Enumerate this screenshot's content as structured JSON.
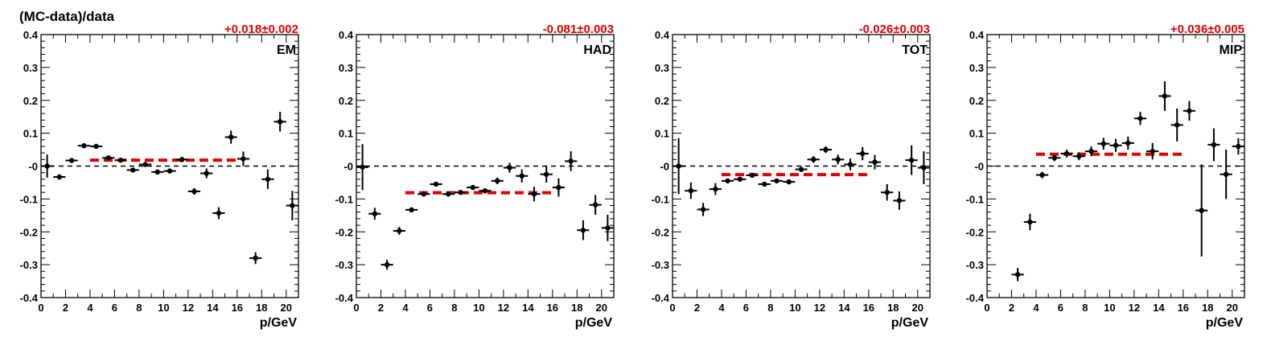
{
  "figure": {
    "ylabel": "(MC-data)/data"
  },
  "chart_data": [
    {
      "type": "scatter",
      "panel_label": "EM",
      "fit_label": "+0.018±0.002",
      "fit": {
        "value": 0.018,
        "x_range": [
          4,
          16
        ],
        "color": "#e00000"
      },
      "xlabel": "p/GeV",
      "xlim": [
        0,
        21
      ],
      "ylim": [
        -0.4,
        0.4
      ],
      "x_ticks": [
        0,
        2,
        4,
        6,
        8,
        10,
        12,
        14,
        16,
        18,
        20
      ],
      "y_ticks": [
        -0.4,
        -0.3,
        -0.2,
        -0.1,
        0,
        0.1,
        0.2,
        0.3,
        0.4
      ],
      "points": [
        {
          "x": 0.5,
          "y": 0.0,
          "err": 0.035
        },
        {
          "x": 1.5,
          "y": -0.033,
          "err": 0.008
        },
        {
          "x": 2.5,
          "y": 0.017,
          "err": 0.007
        },
        {
          "x": 3.5,
          "y": 0.062,
          "err": 0.006
        },
        {
          "x": 4.5,
          "y": 0.06,
          "err": 0.005
        },
        {
          "x": 5.5,
          "y": 0.025,
          "err": 0.005
        },
        {
          "x": 6.5,
          "y": 0.018,
          "err": 0.005
        },
        {
          "x": 7.5,
          "y": -0.012,
          "err": 0.006
        },
        {
          "x": 8.5,
          "y": 0.005,
          "err": 0.006
        },
        {
          "x": 9.5,
          "y": -0.018,
          "err": 0.006
        },
        {
          "x": 10.5,
          "y": -0.015,
          "err": 0.007
        },
        {
          "x": 11.5,
          "y": 0.02,
          "err": 0.008
        },
        {
          "x": 12.5,
          "y": -0.077,
          "err": 0.01
        },
        {
          "x": 13.5,
          "y": -0.022,
          "err": 0.015
        },
        {
          "x": 14.5,
          "y": -0.143,
          "err": 0.018
        },
        {
          "x": 15.5,
          "y": 0.088,
          "err": 0.02
        },
        {
          "x": 16.5,
          "y": 0.022,
          "err": 0.022
        },
        {
          "x": 17.5,
          "y": -0.28,
          "err": 0.018
        },
        {
          "x": 18.5,
          "y": -0.04,
          "err": 0.03
        },
        {
          "x": 19.5,
          "y": 0.135,
          "err": 0.03
        },
        {
          "x": 20.5,
          "y": -0.12,
          "err": 0.045
        }
      ]
    },
    {
      "type": "scatter",
      "panel_label": "HAD",
      "fit_label": "-0.081±0.003",
      "fit": {
        "value": -0.081,
        "x_range": [
          4,
          16
        ],
        "color": "#e00000"
      },
      "xlabel": "p/GeV",
      "xlim": [
        0,
        21
      ],
      "ylim": [
        -0.4,
        0.4
      ],
      "x_ticks": [
        0,
        2,
        4,
        6,
        8,
        10,
        12,
        14,
        16,
        18,
        20
      ],
      "y_ticks": [
        -0.4,
        -0.3,
        -0.2,
        -0.1,
        0,
        0.1,
        0.2,
        0.3,
        0.4
      ],
      "points": [
        {
          "x": 0.5,
          "y": -0.003,
          "err": 0.07
        },
        {
          "x": 1.5,
          "y": -0.145,
          "err": 0.018
        },
        {
          "x": 2.5,
          "y": -0.3,
          "err": 0.015
        },
        {
          "x": 3.5,
          "y": -0.197,
          "err": 0.012
        },
        {
          "x": 4.5,
          "y": -0.133,
          "err": 0.006
        },
        {
          "x": 5.5,
          "y": -0.085,
          "err": 0.006
        },
        {
          "x": 6.5,
          "y": -0.055,
          "err": 0.005
        },
        {
          "x": 7.5,
          "y": -0.085,
          "err": 0.006
        },
        {
          "x": 8.5,
          "y": -0.08,
          "err": 0.006
        },
        {
          "x": 9.5,
          "y": -0.065,
          "err": 0.007
        },
        {
          "x": 10.5,
          "y": -0.075,
          "err": 0.008
        },
        {
          "x": 11.5,
          "y": -0.045,
          "err": 0.01
        },
        {
          "x": 12.5,
          "y": -0.005,
          "err": 0.015
        },
        {
          "x": 13.5,
          "y": -0.03,
          "err": 0.02
        },
        {
          "x": 14.5,
          "y": -0.085,
          "err": 0.022
        },
        {
          "x": 15.5,
          "y": -0.025,
          "err": 0.025
        },
        {
          "x": 16.5,
          "y": -0.065,
          "err": 0.028
        },
        {
          "x": 17.5,
          "y": 0.015,
          "err": 0.03
        },
        {
          "x": 18.5,
          "y": -0.195,
          "err": 0.03
        },
        {
          "x": 19.5,
          "y": -0.118,
          "err": 0.03
        },
        {
          "x": 20.5,
          "y": -0.188,
          "err": 0.04
        }
      ]
    },
    {
      "type": "scatter",
      "panel_label": "TOT",
      "fit_label": "-0.026±0.003",
      "fit": {
        "value": -0.026,
        "x_range": [
          4,
          16
        ],
        "color": "#e00000"
      },
      "xlabel": "p/GeV",
      "xlim": [
        0,
        21
      ],
      "ylim": [
        -0.4,
        0.4
      ],
      "x_ticks": [
        0,
        2,
        4,
        6,
        8,
        10,
        12,
        14,
        16,
        18,
        20
      ],
      "y_ticks": [
        -0.4,
        -0.3,
        -0.2,
        -0.1,
        0,
        0.1,
        0.2,
        0.3,
        0.4
      ],
      "points": [
        {
          "x": 0.5,
          "y": 0.0,
          "err": 0.085
        },
        {
          "x": 1.5,
          "y": -0.075,
          "err": 0.025
        },
        {
          "x": 2.5,
          "y": -0.132,
          "err": 0.02
        },
        {
          "x": 3.5,
          "y": -0.07,
          "err": 0.018
        },
        {
          "x": 4.5,
          "y": -0.045,
          "err": 0.007
        },
        {
          "x": 5.5,
          "y": -0.04,
          "err": 0.006
        },
        {
          "x": 6.5,
          "y": -0.028,
          "err": 0.005
        },
        {
          "x": 7.5,
          "y": -0.055,
          "err": 0.006
        },
        {
          "x": 8.5,
          "y": -0.045,
          "err": 0.007
        },
        {
          "x": 9.5,
          "y": -0.048,
          "err": 0.007
        },
        {
          "x": 10.5,
          "y": -0.01,
          "err": 0.008
        },
        {
          "x": 11.5,
          "y": 0.02,
          "err": 0.01
        },
        {
          "x": 12.5,
          "y": 0.05,
          "err": 0.01
        },
        {
          "x": 13.5,
          "y": 0.02,
          "err": 0.015
        },
        {
          "x": 14.5,
          "y": 0.005,
          "err": 0.018
        },
        {
          "x": 15.5,
          "y": 0.038,
          "err": 0.02
        },
        {
          "x": 16.5,
          "y": 0.012,
          "err": 0.022
        },
        {
          "x": 17.5,
          "y": -0.08,
          "err": 0.025
        },
        {
          "x": 18.5,
          "y": -0.105,
          "err": 0.028
        },
        {
          "x": 19.5,
          "y": 0.018,
          "err": 0.045
        },
        {
          "x": 20.5,
          "y": -0.005,
          "err": 0.05
        }
      ]
    },
    {
      "type": "scatter",
      "panel_label": "MIP",
      "fit_label": "+0.036±0.005",
      "fit": {
        "value": 0.036,
        "x_range": [
          4,
          16
        ],
        "color": "#e00000"
      },
      "xlabel": "p/GeV",
      "xlim": [
        0,
        21
      ],
      "ylim": [
        -0.4,
        0.4
      ],
      "x_ticks": [
        0,
        2,
        4,
        6,
        8,
        10,
        12,
        14,
        16,
        18,
        20
      ],
      "y_ticks": [
        -0.4,
        -0.3,
        -0.2,
        -0.1,
        0,
        0.1,
        0.2,
        0.3,
        0.4
      ],
      "points": [
        {
          "x": 2.5,
          "y": -0.33,
          "err": 0.02
        },
        {
          "x": 3.5,
          "y": -0.17,
          "err": 0.025
        },
        {
          "x": 4.5,
          "y": -0.027,
          "err": 0.01
        },
        {
          "x": 5.5,
          "y": 0.025,
          "err": 0.01
        },
        {
          "x": 6.5,
          "y": 0.038,
          "err": 0.012
        },
        {
          "x": 7.5,
          "y": 0.03,
          "err": 0.012
        },
        {
          "x": 8.5,
          "y": 0.045,
          "err": 0.015
        },
        {
          "x": 9.5,
          "y": 0.068,
          "err": 0.018
        },
        {
          "x": 10.5,
          "y": 0.063,
          "err": 0.02
        },
        {
          "x": 11.5,
          "y": 0.07,
          "err": 0.02
        },
        {
          "x": 12.5,
          "y": 0.145,
          "err": 0.02
        },
        {
          "x": 13.5,
          "y": 0.045,
          "err": 0.025
        },
        {
          "x": 14.5,
          "y": 0.213,
          "err": 0.045
        },
        {
          "x": 15.5,
          "y": 0.125,
          "err": 0.05
        },
        {
          "x": 16.5,
          "y": 0.168,
          "err": 0.03
        },
        {
          "x": 17.5,
          "y": -0.135,
          "err": 0.14
        },
        {
          "x": 18.5,
          "y": 0.065,
          "err": 0.05
        },
        {
          "x": 19.5,
          "y": -0.025,
          "err": 0.075
        },
        {
          "x": 20.5,
          "y": 0.06,
          "err": 0.025
        }
      ]
    }
  ]
}
